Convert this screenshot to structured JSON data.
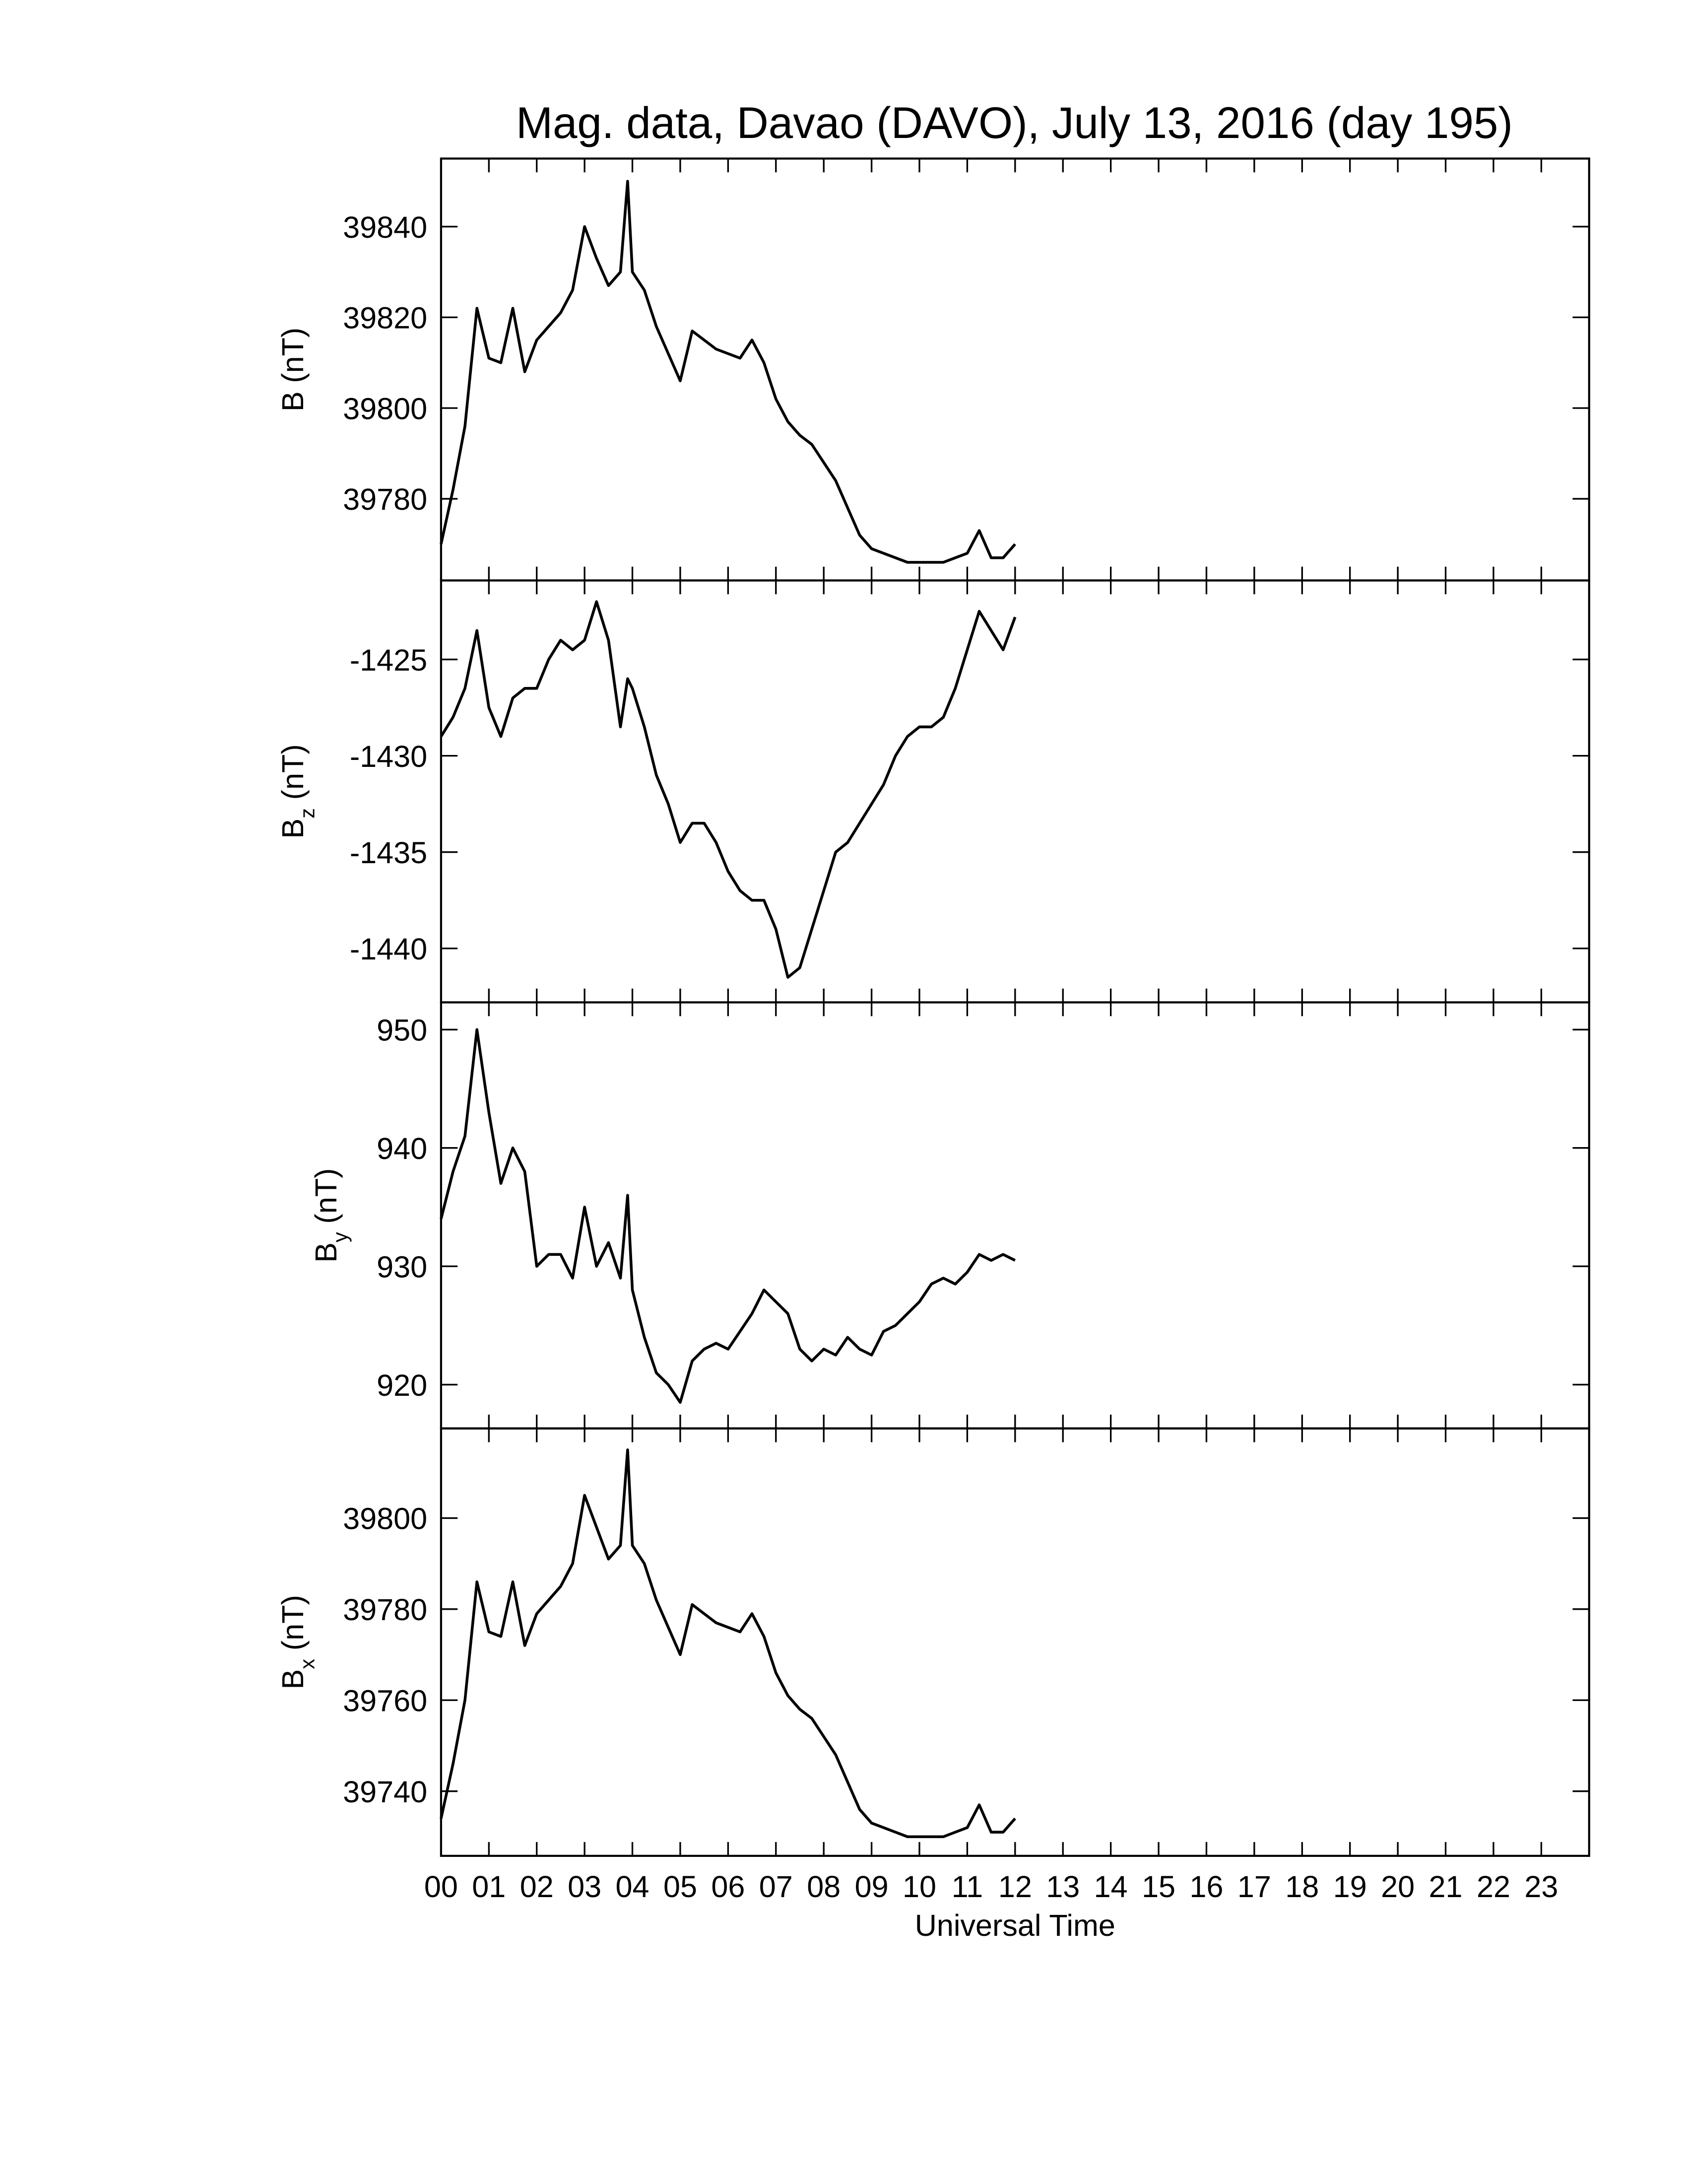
{
  "chart_data": [
    {
      "type": "line",
      "title": "Mag. data, Davao (DAVO), July 13, 2016 (day 195)",
      "ylabel": "B",
      "ylabel_units": "(nT)",
      "xlim": [
        0,
        24
      ],
      "ylim": [
        39762,
        39855
      ],
      "yticks": [
        39780,
        39800,
        39820,
        39840
      ],
      "x": [
        0,
        0.25,
        0.5,
        0.75,
        1,
        1.25,
        1.5,
        1.75,
        2,
        2.25,
        2.5,
        2.75,
        3,
        3.25,
        3.5,
        3.75,
        3.9,
        4,
        4.25,
        4.5,
        4.75,
        5,
        5.25,
        5.5,
        5.75,
        6,
        6.25,
        6.5,
        6.75,
        7,
        7.25,
        7.5,
        7.75,
        8,
        8.25,
        8.5,
        8.75,
        9,
        9.25,
        9.5,
        9.75,
        10,
        10.25,
        10.5,
        10.75,
        11,
        11.25,
        11.5,
        11.75,
        12
      ],
      "series": [
        {
          "color": "#000000",
          "values": [
            39770,
            39782,
            39796,
            39822,
            39811,
            39810,
            39822,
            39808,
            39815,
            39818,
            39821,
            39826,
            39840,
            39833,
            39827,
            39830,
            39850,
            39830,
            39826,
            39818,
            39812,
            39806,
            39817,
            39815,
            39813,
            39812,
            39811,
            39815,
            39810,
            39802,
            39797,
            39794,
            39792,
            39788,
            39784,
            39778,
            39772,
            39769,
            39768,
            39767,
            39766,
            39766,
            39766,
            39766,
            39767,
            39768,
            39773,
            39767,
            39767,
            39770
          ]
        }
      ]
    },
    {
      "type": "line",
      "ylabel": "B",
      "ylabel_subscript": "z",
      "ylabel_units": "(nT)",
      "xlim": [
        0,
        24
      ],
      "ylim": [
        -1442.8,
        -1420.9
      ],
      "yticks": [
        -1440,
        -1435,
        -1430,
        -1425
      ],
      "x": [
        0,
        0.25,
        0.5,
        0.75,
        1,
        1.25,
        1.5,
        1.75,
        2,
        2.25,
        2.5,
        2.75,
        3,
        3.25,
        3.5,
        3.75,
        3.9,
        4,
        4.25,
        4.5,
        4.75,
        5,
        5.25,
        5.5,
        5.75,
        6,
        6.25,
        6.5,
        6.75,
        7,
        7.25,
        7.5,
        7.75,
        8,
        8.25,
        8.5,
        8.75,
        9,
        9.25,
        9.5,
        9.75,
        10,
        10.25,
        10.5,
        10.75,
        11,
        11.25,
        11.5,
        11.75,
        12
      ],
      "series": [
        {
          "color": "#000000",
          "values": [
            -1429,
            -1428,
            -1426.5,
            -1423.5,
            -1427.5,
            -1429,
            -1427,
            -1426.5,
            -1426.5,
            -1425,
            -1424,
            -1424.5,
            -1424,
            -1422,
            -1424,
            -1428.5,
            -1426,
            -1426.5,
            -1428.5,
            -1431,
            -1432.5,
            -1434.5,
            -1433.5,
            -1433.5,
            -1434.5,
            -1436,
            -1437,
            -1437.5,
            -1437.5,
            -1439,
            -1441.5,
            -1441,
            -1439,
            -1437,
            -1435,
            -1434.5,
            -1433.5,
            -1432.5,
            -1431.5,
            -1430,
            -1429,
            -1428.5,
            -1428.5,
            -1428,
            -1426.5,
            -1424.5,
            -1422.5,
            -1423.5,
            -1424.5,
            -1422.8
          ]
        }
      ]
    },
    {
      "type": "line",
      "ylabel": "B",
      "ylabel_subscript": "y",
      "ylabel_units": "(nT)",
      "xlim": [
        0,
        24
      ],
      "ylim": [
        916.3,
        952.3
      ],
      "yticks": [
        920,
        930,
        940,
        950
      ],
      "x": [
        0,
        0.25,
        0.5,
        0.75,
        1,
        1.25,
        1.5,
        1.75,
        2,
        2.25,
        2.5,
        2.75,
        3,
        3.25,
        3.5,
        3.75,
        3.9,
        4,
        4.25,
        4.5,
        4.75,
        5,
        5.25,
        5.5,
        5.75,
        6,
        6.25,
        6.5,
        6.75,
        7,
        7.25,
        7.5,
        7.75,
        8,
        8.25,
        8.5,
        8.75,
        9,
        9.25,
        9.5,
        9.75,
        10,
        10.25,
        10.5,
        10.75,
        11,
        11.25,
        11.5,
        11.75,
        12
      ],
      "series": [
        {
          "color": "#000000",
          "values": [
            934,
            938,
            941,
            950,
            943,
            937,
            940,
            938,
            930,
            931,
            931,
            929,
            935,
            930,
            932,
            929,
            936,
            928,
            924,
            921,
            920,
            918.5,
            922,
            923,
            923.5,
            923,
            924.5,
            926,
            928,
            927,
            926,
            923,
            922,
            923,
            922.5,
            924,
            923,
            922.5,
            924.5,
            925,
            926,
            927,
            928.5,
            929,
            928.5,
            929.5,
            931,
            930.5,
            931,
            930.5
          ]
        }
      ]
    },
    {
      "type": "line",
      "ylabel": "B",
      "ylabel_subscript": "x",
      "ylabel_units": "(nT)",
      "xlabel": "Universal Time",
      "xlim": [
        0,
        24
      ],
      "ylim": [
        39725.8,
        39819.7
      ],
      "yticks": [
        39740,
        39760,
        39780,
        39800
      ],
      "xticks": [
        {
          "value": 0,
          "label": "00"
        },
        {
          "value": 1,
          "label": "01"
        },
        {
          "value": 2,
          "label": "02"
        },
        {
          "value": 3,
          "label": "03"
        },
        {
          "value": 4,
          "label": "04"
        },
        {
          "value": 5,
          "label": "05"
        },
        {
          "value": 6,
          "label": "06"
        },
        {
          "value": 7,
          "label": "07"
        },
        {
          "value": 8,
          "label": "08"
        },
        {
          "value": 9,
          "label": "09"
        },
        10,
        11,
        12,
        13,
        14,
        15,
        16,
        17,
        18,
        19,
        20,
        21,
        22,
        23
      ],
      "x": [
        0,
        0.25,
        0.5,
        0.75,
        1,
        1.25,
        1.5,
        1.75,
        2,
        2.25,
        2.5,
        2.75,
        3,
        3.25,
        3.5,
        3.75,
        3.9,
        4,
        4.25,
        4.5,
        4.75,
        5,
        5.25,
        5.5,
        5.75,
        6,
        6.25,
        6.5,
        6.75,
        7,
        7.25,
        7.5,
        7.75,
        8,
        8.25,
        8.5,
        8.75,
        9,
        9.25,
        9.5,
        9.75,
        10,
        10.25,
        10.5,
        10.75,
        11,
        11.25,
        11.5,
        11.75,
        12
      ],
      "series": [
        {
          "color": "#000000",
          "values": [
            39734,
            39746,
            39760,
            39786,
            39775,
            39774,
            39786,
            39772,
            39779,
            39782,
            39785,
            39790,
            39805,
            39798,
            39791,
            39794,
            39815,
            39794,
            39790,
            39782,
            39776,
            39770,
            39781,
            39779,
            39777,
            39776,
            39775,
            39779,
            39774,
            39766,
            39761,
            39758,
            39756,
            39752,
            39748,
            39742,
            39736,
            39733,
            39732,
            39731,
            39730,
            39730,
            39730,
            39730,
            39731,
            39732,
            39737,
            39731,
            39731,
            39734
          ]
        }
      ]
    }
  ]
}
